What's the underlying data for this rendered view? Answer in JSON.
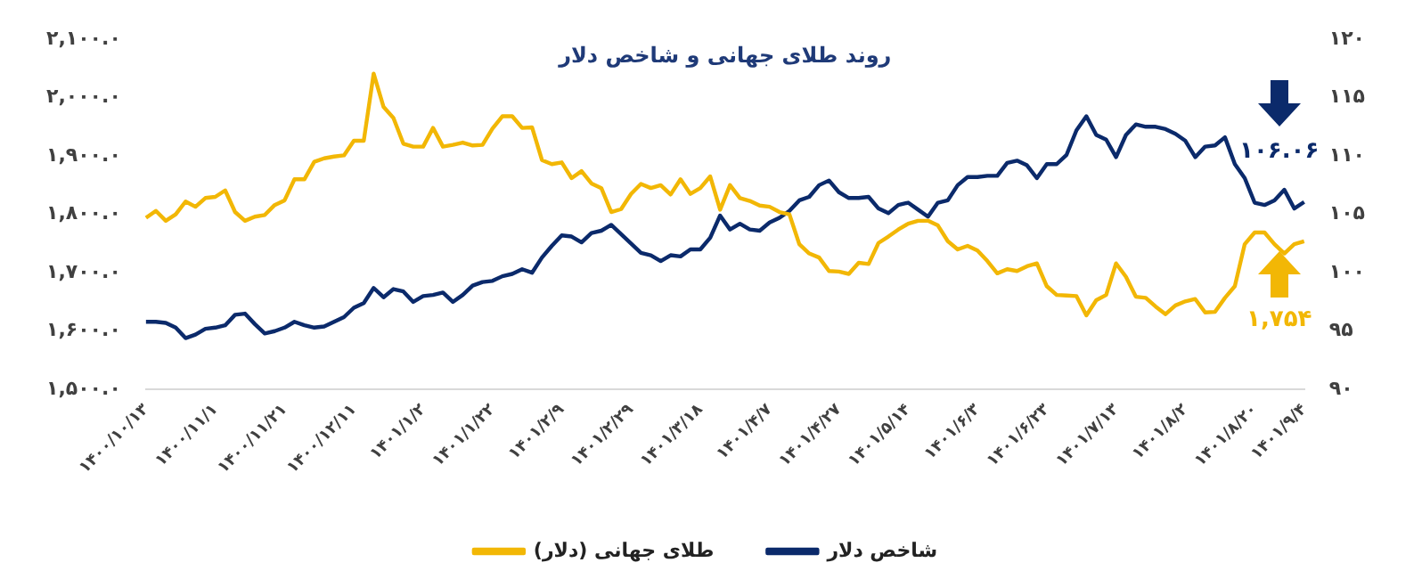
{
  "chart_data": {
    "type": "line",
    "title": "روند طلای جهانی و شاخص دلار",
    "categories": [
      "۱۴۰۰/۱۰/۱۳",
      null,
      null,
      null,
      null,
      null,
      null,
      "۱۴۰۰/۱۱/۱",
      null,
      null,
      null,
      null,
      null,
      null,
      "۱۴۰۰/۱۱/۲۱",
      null,
      null,
      null,
      null,
      null,
      null,
      "۱۴۰۰/۱۲/۱۱",
      null,
      null,
      null,
      null,
      null,
      null,
      "۱۴۰۱/۱/۲",
      null,
      null,
      null,
      null,
      null,
      null,
      "۱۴۰۱/۱/۲۲",
      null,
      null,
      null,
      null,
      null,
      null,
      "۱۴۰۱/۲/۹",
      null,
      null,
      null,
      null,
      null,
      null,
      "۱۴۰۱/۲/۲۹",
      null,
      null,
      null,
      null,
      null,
      null,
      "۱۴۰۱/۳/۱۸",
      null,
      null,
      null,
      null,
      null,
      null,
      "۱۴۰۱/۴/۷",
      null,
      null,
      null,
      null,
      null,
      null,
      "۱۴۰۱/۴/۲۷",
      null,
      null,
      null,
      null,
      null,
      null,
      "۱۴۰۱/۵/۱۴",
      null,
      null,
      null,
      null,
      null,
      null,
      "۱۴۰۱/۶/۳",
      null,
      null,
      null,
      null,
      null,
      null,
      "۱۴۰۱/۶/۲۳",
      null,
      null,
      null,
      null,
      null,
      null,
      "۱۴۰۱/۷/۱۳",
      null,
      null,
      null,
      null,
      null,
      null,
      "۱۴۰۱/۸/۲",
      null,
      null,
      null,
      null,
      null,
      null,
      "۱۴۰۱/۸/۲۰",
      null,
      null,
      null,
      null,
      "۱۴۰۱/۹/۴"
    ],
    "series": [
      {
        "name": "طلای جهانی (دلار)",
        "color": "#f2b705",
        "values": [
          1794,
          1806,
          1789,
          1800,
          1822,
          1813,
          1828,
          1830,
          1841,
          1804,
          1789,
          1796,
          1799,
          1816,
          1824,
          1860,
          1860,
          1890,
          1896,
          1899,
          1901,
          1926,
          1926,
          2041,
          1984,
          1965,
          1921,
          1916,
          1916,
          1948,
          1916,
          1919,
          1923,
          1918,
          1919,
          1947,
          1968,
          1968,
          1948,
          1949,
          1893,
          1886,
          1889,
          1862,
          1874,
          1853,
          1845,
          1804,
          1809,
          1835,
          1852,
          1845,
          1850,
          1834,
          1860,
          1835,
          1845,
          1865,
          1808,
          1850,
          1828,
          1823,
          1815,
          1813,
          1804,
          1800,
          1749,
          1733,
          1726,
          1703,
          1702,
          1698,
          1717,
          1715,
          1751,
          1762,
          1774,
          1784,
          1789,
          1789,
          1781,
          1754,
          1740,
          1746,
          1738,
          1720,
          1699,
          1706,
          1703,
          1711,
          1716,
          1677,
          1662,
          1661,
          1660,
          1627,
          1653,
          1662,
          1716,
          1693,
          1659,
          1657,
          1642,
          1629,
          1644,
          1651,
          1655,
          1632,
          1633,
          1657,
          1677,
          1749,
          1769,
          1769,
          1749,
          1733,
          1749,
          1754
        ]
      },
      {
        "name": "شاخص دلار",
        "color": "#0b2a6b",
        "axis": "y2",
        "values": [
          95.8,
          95.8,
          95.7,
          95.3,
          94.4,
          94.7,
          95.2,
          95.3,
          95.5,
          96.4,
          96.5,
          95.6,
          94.8,
          95.0,
          95.3,
          95.8,
          95.5,
          95.3,
          95.4,
          95.8,
          96.2,
          97.0,
          97.4,
          98.7,
          97.9,
          98.6,
          98.4,
          97.5,
          98.0,
          98.1,
          98.3,
          97.5,
          98.1,
          98.9,
          99.2,
          99.3,
          99.7,
          99.9,
          100.3,
          100.0,
          101.3,
          102.3,
          103.2,
          103.1,
          102.6,
          103.4,
          103.6,
          104.1,
          103.3,
          102.5,
          101.7,
          101.5,
          101.0,
          101.5,
          101.4,
          102.0,
          102.0,
          103.0,
          104.9,
          103.7,
          104.2,
          103.7,
          103.6,
          104.3,
          104.7,
          105.3,
          106.2,
          106.5,
          107.5,
          107.9,
          106.9,
          106.4,
          106.4,
          106.5,
          105.5,
          105.1,
          105.8,
          106.0,
          105.4,
          104.8,
          106.0,
          106.2,
          107.5,
          108.2,
          108.2,
          108.3,
          108.3,
          109.4,
          109.6,
          109.2,
          108.1,
          109.3,
          109.3,
          110.1,
          112.2,
          113.4,
          111.8,
          111.4,
          109.9,
          111.8,
          112.7,
          112.5,
          112.5,
          112.3,
          111.9,
          111.3,
          109.9,
          110.8,
          110.9,
          111.6,
          109.3,
          108.1,
          106.0,
          105.8,
          106.2,
          107.1,
          105.5,
          106.06
        ]
      }
    ],
    "ylim": [
      1500,
      2100
    ],
    "yticks": [
      {
        "value": 1500,
        "label": "۱,۵۰۰.۰"
      },
      {
        "value": 1600,
        "label": "۱,۶۰۰.۰"
      },
      {
        "value": 1700,
        "label": "۱,۷۰۰.۰"
      },
      {
        "value": 1800,
        "label": "۱,۸۰۰.۰"
      },
      {
        "value": 1900,
        "label": "۱,۹۰۰.۰"
      },
      {
        "value": 2000,
        "label": "۲,۰۰۰.۰"
      },
      {
        "value": 2100,
        "label": "۲,۱۰۰.۰"
      }
    ],
    "y2lim": [
      90,
      120
    ],
    "y2ticks": [
      {
        "value": 90,
        "label": "۹۰"
      },
      {
        "value": 95,
        "label": "۹۵"
      },
      {
        "value": 100,
        "label": "۱۰۰"
      },
      {
        "value": 105,
        "label": "۱۰۵"
      },
      {
        "value": 110,
        "label": "۱۱۰"
      },
      {
        "value": 115,
        "label": "۱۱۵"
      },
      {
        "value": 120,
        "label": "۱۲۰"
      }
    ],
    "annotations": [
      "۱,۷۵۴",
      "۱۰۶.۰۶"
    ],
    "grid": false,
    "legend": "bottom",
    "marker": "none",
    "line_style": "solid"
  }
}
